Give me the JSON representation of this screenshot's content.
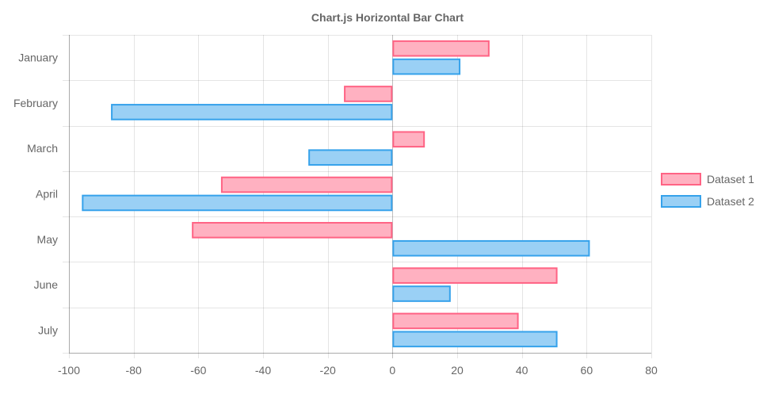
{
  "chart_data": {
    "type": "bar",
    "orientation": "horizontal",
    "title": "Chart.js Horizontal Bar Chart",
    "categories": [
      "January",
      "February",
      "March",
      "April",
      "May",
      "June",
      "July"
    ],
    "xlim": [
      -100,
      80
    ],
    "x_ticks": [
      -100,
      -80,
      -60,
      -40,
      -20,
      0,
      20,
      40,
      60,
      80
    ],
    "x_tick_labels": [
      "-100",
      "-80",
      "-60",
      "-40",
      "-20",
      "0",
      "20",
      "40",
      "60",
      "80"
    ],
    "grid": true,
    "legend_position": "right",
    "series": [
      {
        "name": "Dataset 1",
        "values": [
          30,
          -15,
          10,
          -53,
          -62,
          51,
          39
        ],
        "fill": "#ffb1c1",
        "stroke": "#ff6384"
      },
      {
        "name": "Dataset 2",
        "values": [
          21,
          -87,
          -26,
          -96,
          61,
          18,
          51
        ],
        "fill": "#9ad0f5",
        "stroke": "#36a2eb"
      }
    ]
  }
}
